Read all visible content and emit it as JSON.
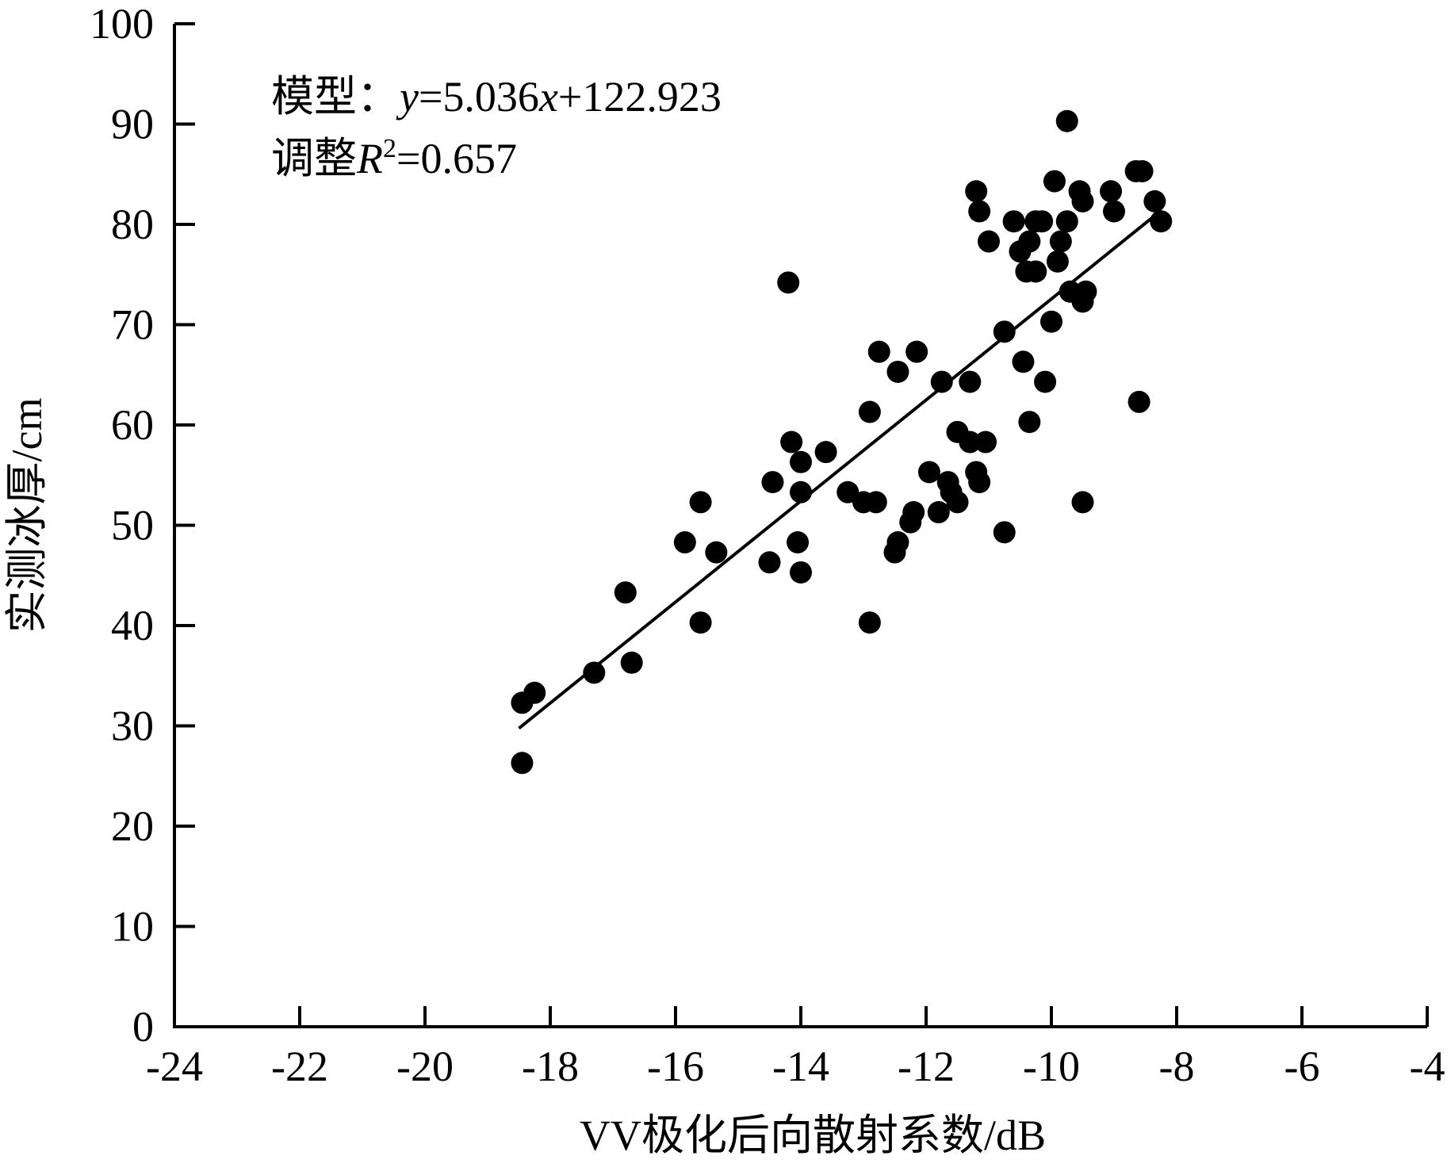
{
  "chart_data": {
    "type": "scatter",
    "xlabel": "VV极化后向散射系数/dB",
    "ylabel": "实测冰厚/cm",
    "xlim": [
      -24,
      -4
    ],
    "ylim": [
      0,
      100
    ],
    "x_ticks": [
      "-24",
      "-22",
      "-20",
      "-18",
      "-16",
      "-14",
      "-12",
      "-10",
      "-8",
      "-6",
      "-4"
    ],
    "y_ticks": [
      "0",
      "10",
      "20",
      "30",
      "40",
      "50",
      "60",
      "70",
      "80",
      "90",
      "100"
    ],
    "grid": false,
    "annotations": {
      "model_prefix": "模型：",
      "model_y": "y",
      "model_mid": "=5.036",
      "model_x": "x",
      "model_suffix": "+122.923",
      "r2_prefix": "调整",
      "r2_R": "R",
      "r2_sup": "2",
      "r2_suffix": "=0.657"
    },
    "fit_line": {
      "slope": 5.036,
      "intercept": 122.923,
      "x_range": [
        -18.5,
        -8.4
      ]
    },
    "points": [
      [
        -18.45,
        32.3
      ],
      [
        -18.25,
        33.3
      ],
      [
        -18.45,
        26.3
      ],
      [
        -17.3,
        35.3
      ],
      [
        -16.8,
        43.3
      ],
      [
        -16.7,
        36.3
      ],
      [
        -15.85,
        48.3
      ],
      [
        -15.6,
        52.3
      ],
      [
        -15.6,
        40.3
      ],
      [
        -15.35,
        47.3
      ],
      [
        -14.5,
        46.3
      ],
      [
        -14.45,
        54.3
      ],
      [
        -14.2,
        74.2
      ],
      [
        -14.15,
        58.3
      ],
      [
        -14.05,
        48.3
      ],
      [
        -14.0,
        56.3
      ],
      [
        -14.0,
        53.3
      ],
      [
        -14.0,
        45.3
      ],
      [
        -13.6,
        57.3
      ],
      [
        -13.25,
        53.3
      ],
      [
        -13.0,
        52.3
      ],
      [
        -12.9,
        61.3
      ],
      [
        -12.9,
        40.3
      ],
      [
        -12.8,
        52.3
      ],
      [
        -12.75,
        67.3
      ],
      [
        -12.45,
        65.3
      ],
      [
        -12.5,
        47.3
      ],
      [
        -12.45,
        48.3
      ],
      [
        -12.25,
        50.3
      ],
      [
        -12.2,
        51.3
      ],
      [
        -12.15,
        67.3
      ],
      [
        -11.95,
        55.3
      ],
      [
        -11.8,
        51.3
      ],
      [
        -11.75,
        64.3
      ],
      [
        -11.65,
        54.3
      ],
      [
        -11.6,
        53.3
      ],
      [
        -11.5,
        52.3
      ],
      [
        -11.5,
        59.3
      ],
      [
        -11.3,
        64.3
      ],
      [
        -11.3,
        58.3
      ],
      [
        -11.2,
        55.3
      ],
      [
        -11.15,
        54.3
      ],
      [
        -11.2,
        83.3
      ],
      [
        -11.15,
        81.3
      ],
      [
        -11.05,
        58.3
      ],
      [
        -11.0,
        78.3
      ],
      [
        -10.75,
        69.3
      ],
      [
        -10.75,
        49.3
      ],
      [
        -10.6,
        80.3
      ],
      [
        -10.5,
        77.3
      ],
      [
        -10.45,
        66.3
      ],
      [
        -10.4,
        75.3
      ],
      [
        -10.35,
        78.3
      ],
      [
        -10.35,
        60.3
      ],
      [
        -10.25,
        75.3
      ],
      [
        -10.25,
        80.3
      ],
      [
        -10.15,
        80.3
      ],
      [
        -10.1,
        64.3
      ],
      [
        -10.0,
        70.3
      ],
      [
        -9.95,
        84.3
      ],
      [
        -9.9,
        76.3
      ],
      [
        -9.85,
        78.3
      ],
      [
        -9.75,
        80.3
      ],
      [
        -9.7,
        73.3
      ],
      [
        -9.75,
        90.3
      ],
      [
        -9.55,
        83.3
      ],
      [
        -9.5,
        82.3
      ],
      [
        -9.5,
        72.3
      ],
      [
        -9.45,
        73.3
      ],
      [
        -9.5,
        52.3
      ],
      [
        -9.05,
        83.3
      ],
      [
        -9.0,
        81.3
      ],
      [
        -8.65,
        85.3
      ],
      [
        -8.55,
        85.3
      ],
      [
        -8.6,
        62.3
      ],
      [
        -8.35,
        82.3
      ],
      [
        -8.25,
        80.3
      ]
    ]
  }
}
